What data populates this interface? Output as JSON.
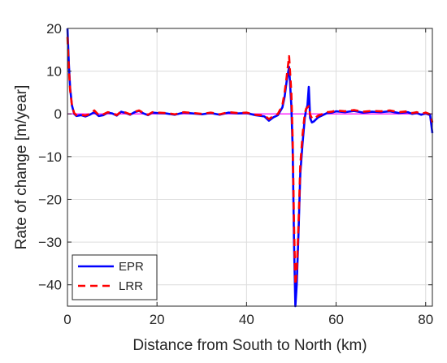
{
  "chart_data": {
    "type": "line",
    "title": "",
    "xlabel": "Distance from South to North (km)",
    "ylabel": "Rate of change [m/year]",
    "xlim": [
      0,
      81.5
    ],
    "ylim": [
      -45,
      20
    ],
    "xticks": [
      0,
      20,
      40,
      60,
      80
    ],
    "yticks": [
      20,
      10,
      0,
      -10,
      -20,
      -30,
      -40
    ],
    "xtick_labels": [
      "0",
      "20",
      "40",
      "60",
      "80"
    ],
    "ytick_labels": [
      "20",
      "10",
      "0",
      "−10",
      "−20",
      "−30",
      "−40"
    ],
    "grid": true,
    "legend_position": "bottom-left",
    "reference_line": {
      "y": 0,
      "color": "#ff00ff"
    },
    "series": [
      {
        "name": "EPR",
        "color": "#0000ff",
        "style": "solid",
        "x": [
          0,
          0.3,
          0.6,
          1.0,
          1.5,
          2.0,
          3,
          4,
          5,
          6,
          7,
          8,
          9,
          10,
          11,
          12,
          13,
          14,
          15,
          16,
          17,
          18,
          19,
          20,
          22,
          24,
          26,
          28,
          30,
          32,
          34,
          36,
          38,
          40,
          42,
          44,
          45,
          46,
          47,
          48,
          48.5,
          49,
          49.5,
          50,
          50.3,
          50.6,
          50.9,
          51.2,
          51.6,
          52,
          52.5,
          53,
          53.3,
          53.6,
          53.9,
          54.2,
          54.6,
          55,
          56,
          57,
          58,
          59,
          60,
          62,
          64,
          66,
          68,
          70,
          72,
          74,
          76,
          77,
          78,
          79,
          80,
          81,
          81.5
        ],
        "y": [
          20,
          12,
          6,
          2,
          0,
          -0.5,
          -0.3,
          -0.6,
          -0.2,
          0.4,
          -0.5,
          -0.3,
          0.3,
          0.1,
          -0.4,
          0.5,
          0.2,
          -0.2,
          0.4,
          0.7,
          0.1,
          -0.3,
          0.3,
          0.2,
          0.1,
          -0.2,
          0.3,
          0.1,
          -0.1,
          0.2,
          -0.2,
          0.3,
          0.1,
          0.2,
          -0.3,
          -0.6,
          -1.6,
          -0.8,
          -0.3,
          1.5,
          4,
          8,
          11,
          2,
          -8,
          -30,
          -45,
          -40,
          -28,
          -14,
          -7,
          -1,
          1,
          2,
          6.3,
          -1,
          -2,
          -1.8,
          -0.8,
          -0.3,
          0.2,
          0.3,
          0.6,
          0.4,
          0.7,
          0.3,
          0.5,
          0.4,
          0.6,
          0.2,
          0.4,
          0,
          0.2,
          -0.2,
          0.1,
          -0.3,
          -4.5
        ]
      },
      {
        "name": "LRR",
        "color": "#ff0000",
        "style": "dashed",
        "x": [
          0,
          0.3,
          0.6,
          1.0,
          1.5,
          2.0,
          3,
          4,
          5,
          6,
          7,
          8,
          9,
          10,
          11,
          12,
          13,
          14,
          15,
          16,
          17,
          18,
          19,
          20,
          22,
          24,
          26,
          28,
          30,
          32,
          34,
          36,
          38,
          40,
          42,
          44,
          45,
          46,
          47,
          48,
          48.5,
          49,
          49.5,
          50,
          50.3,
          50.6,
          50.9,
          51.2,
          51.6,
          52,
          52.5,
          53,
          53.3,
          53.6,
          53.9,
          54.2,
          54.6,
          55,
          56,
          57,
          58,
          59,
          60,
          62,
          64,
          66,
          68,
          70,
          72,
          74,
          76,
          77,
          78,
          79,
          80,
          81,
          81.5
        ],
        "y": [
          18,
          11,
          5.5,
          2,
          0.2,
          -0.3,
          -0.2,
          -0.4,
          0,
          0.8,
          -0.3,
          -0.1,
          0.4,
          0.2,
          -0.3,
          0.6,
          0.3,
          -0.1,
          0.5,
          0.8,
          0.2,
          -0.2,
          0.4,
          0.3,
          0.2,
          -0.1,
          0.4,
          0.2,
          0,
          0.3,
          -0.1,
          0.4,
          0.2,
          0.3,
          -0.2,
          -0.4,
          -1.2,
          -0.5,
          0,
          2,
          5,
          9,
          13.5,
          5,
          -6,
          -26,
          -40,
          -37,
          -26,
          -12,
          -5,
          0,
          1.2,
          1.5,
          1.8,
          -0.2,
          -1,
          -1.2,
          -0.4,
          0,
          0.4,
          0.5,
          0.8,
          0.6,
          0.9,
          0.5,
          0.7,
          0.6,
          0.8,
          0.4,
          0.6,
          0.2,
          0.4,
          0,
          0.3,
          -0.1,
          -2
        ]
      }
    ]
  }
}
